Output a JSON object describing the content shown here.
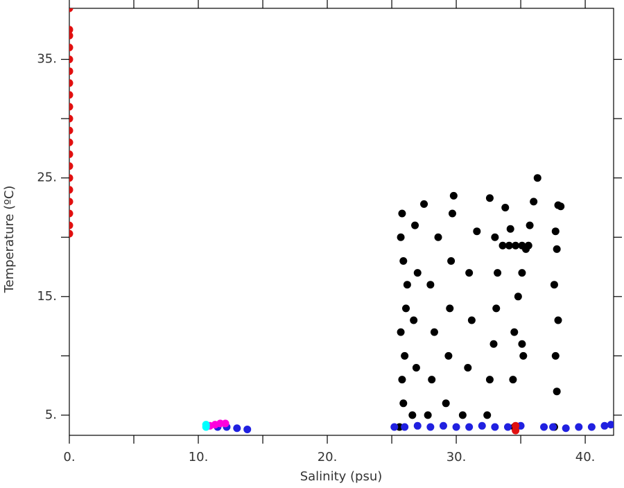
{
  "chart_data": {
    "type": "scatter",
    "xlabel": "Salinity (psu)",
    "ylabel": "Temperature (ºC)",
    "xlim": [
      0,
      42.2
    ],
    "ylim": [
      3.3,
      39.3
    ],
    "xticks": [
      {
        "value": 0,
        "label": "0."
      },
      {
        "value": 10,
        "label": "10."
      },
      {
        "value": 20,
        "label": "20."
      },
      {
        "value": 30,
        "label": "30."
      },
      {
        "value": 40,
        "label": "40."
      }
    ],
    "xminorticks": [
      5,
      15,
      25,
      35
    ],
    "yticks": [
      {
        "value": 5,
        "label": "5."
      },
      {
        "value": 15,
        "label": "15."
      },
      {
        "value": 25,
        "label": "25."
      },
      {
        "value": 35,
        "label": "35."
      }
    ],
    "yminorticks": [
      10,
      20,
      30
    ],
    "grid": false,
    "series": [
      {
        "color": "#000000",
        "x": [
          25.6,
          25.9,
          25.8,
          26.0,
          25.7,
          26.1,
          26.2,
          25.9,
          25.7,
          25.8,
          26.6,
          26.9,
          26.7,
          27.0,
          26.8,
          27.5,
          27.8,
          28.1,
          28.3,
          28.0,
          28.6,
          29.2,
          29.4,
          29.5,
          29.6,
          29.7,
          29.8,
          30.5,
          30.9,
          31.2,
          31.0,
          31.6,
          32.4,
          32.6,
          32.9,
          33.1,
          33.2,
          33.0,
          32.6,
          33.8,
          34.2,
          33.6,
          34.1,
          34.6,
          35.1,
          35.6,
          34.5,
          34.4,
          34.5,
          34.8,
          35.1,
          35.4,
          35.7,
          36.0,
          36.3,
          35.2,
          35.1,
          37.6,
          37.8,
          37.7,
          37.9,
          37.6,
          37.8,
          37.7,
          37.9,
          38.1
        ],
        "y": [
          4,
          6,
          8,
          10,
          12,
          14,
          16,
          18,
          20,
          22,
          5,
          9,
          13,
          17,
          21,
          22.8,
          5,
          8,
          12,
          16,
          20,
          6,
          10,
          14,
          18,
          22,
          23.5,
          5,
          9,
          13,
          17,
          20.5,
          5,
          8,
          11,
          14,
          17,
          20,
          23.3,
          22.5,
          20.7,
          19.3,
          19.3,
          19.3,
          19.3,
          19.3,
          4,
          8,
          12,
          15,
          17,
          19,
          21,
          23,
          25,
          10,
          11,
          4,
          7,
          10,
          13,
          16,
          19,
          20.5,
          22.7,
          22.6
        ]
      },
      {
        "color": "#2020e0",
        "x": [
          10.7,
          11.5,
          12.2,
          13.0,
          13.8,
          25.2,
          26.0,
          27.0,
          28.0,
          29.0,
          30.0,
          31.0,
          32.0,
          33.0,
          34.0,
          35.0,
          36.8,
          37.5,
          38.5,
          39.5,
          40.5,
          41.5,
          42.0
        ],
        "y": [
          4.1,
          4.0,
          4.0,
          3.9,
          3.8,
          4.0,
          4.0,
          4.1,
          4.0,
          4.1,
          4.0,
          4.0,
          4.1,
          4.0,
          4.0,
          4.1,
          4.0,
          4.0,
          3.9,
          4.0,
          4.0,
          4.1,
          4.2
        ]
      },
      {
        "color": "#ff00dd",
        "x": [
          10.9,
          11.3,
          11.7,
          12.1
        ],
        "y": [
          4.1,
          4.2,
          4.3,
          4.3
        ]
      },
      {
        "color": "#00ffff",
        "x": [
          10.6,
          10.6
        ],
        "y": [
          4.0,
          4.2
        ]
      },
      {
        "color": "#e01010",
        "x": [
          0,
          0,
          0,
          0,
          0,
          0,
          0,
          0,
          0,
          0,
          0,
          0,
          0,
          0,
          0,
          0,
          0,
          0,
          0,
          0,
          34.6,
          34.6
        ],
        "y": [
          20.3,
          21,
          22,
          23,
          24,
          25,
          26,
          27,
          28,
          29,
          30,
          31,
          32,
          33,
          34,
          35,
          36,
          37,
          37.5,
          39.3,
          3.7,
          4.1
        ]
      }
    ]
  }
}
